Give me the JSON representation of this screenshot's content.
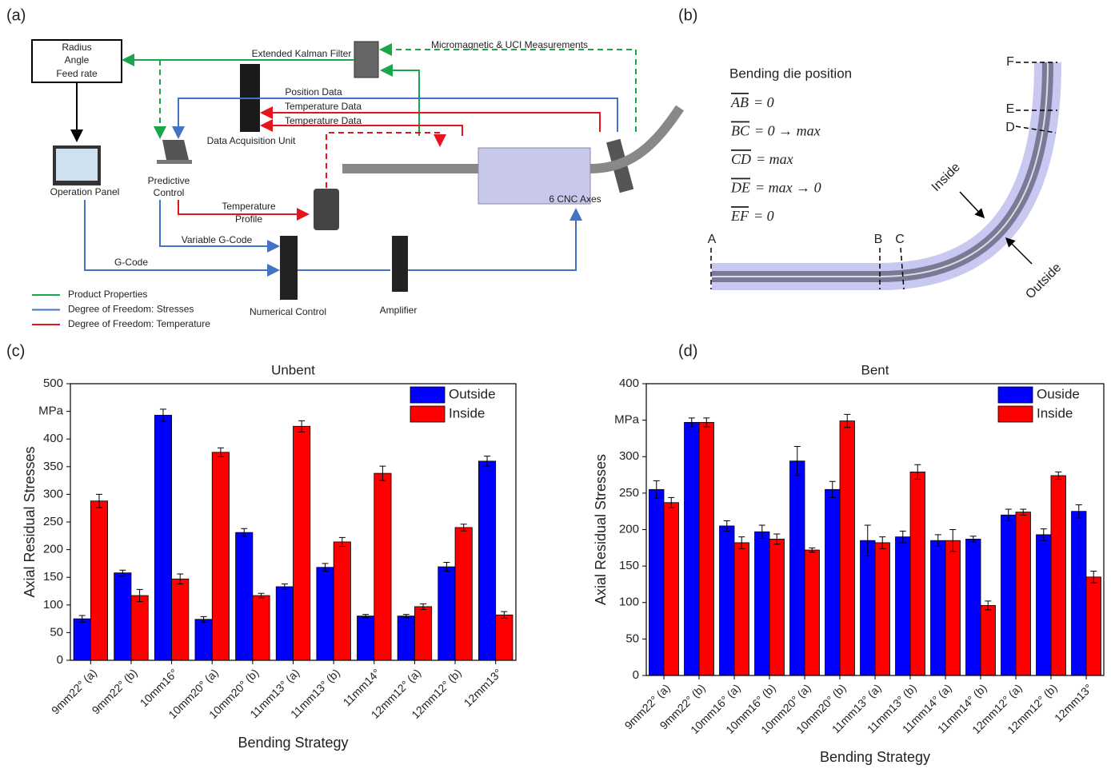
{
  "panel_labels": [
    "(a)",
    "(b)",
    "(c)",
    "(d)"
  ],
  "diagram_a": {
    "target_box": [
      "Radius",
      "Angle",
      "Feed rate"
    ],
    "nodes": {
      "operation_panel": "Operation Panel",
      "predictive_control": [
        "Predictive",
        "Control"
      ],
      "data_acquisition": "Data Acquisition Unit",
      "kalman_filter": "Extended Kalman Filter",
      "cnc_axes": "6 CNC Axes",
      "numerical_control": "Numerical Control",
      "amplifier": "Amplifier"
    },
    "edges": {
      "measurements": "Micromagnetic & UCI Measurements",
      "position": "Position Data",
      "temperature_1": "Temperature Data",
      "temperature_2": "Temperature Data",
      "temperature_profile": [
        "Temperature",
        "Profile"
      ],
      "variable_gcode": "Variable G-Code",
      "gcode": "G-Code"
    },
    "legend": [
      {
        "name": "Product Properties",
        "color": "#1aa64a"
      },
      {
        "name": "Degree of Freedom: Stresses",
        "color": "#4472c4"
      },
      {
        "name": "Degree of Freedom: Temperature",
        "color": "#e8141b"
      }
    ]
  },
  "diagram_b": {
    "heading": "Bending die position",
    "formulas": [
      {
        "segment": "AB",
        "expression": "= 0"
      },
      {
        "segment": "BC",
        "expression": "= 0 → max"
      },
      {
        "segment": "CD",
        "expression": "= max"
      },
      {
        "segment": "DE",
        "expression": "= max → 0"
      },
      {
        "segment": "EF",
        "expression": "= 0"
      }
    ],
    "points": [
      "A",
      "B",
      "C",
      "D",
      "E",
      "F"
    ],
    "sides": [
      "Inside",
      "Outside"
    ]
  },
  "chart_data": [
    {
      "type": "bar",
      "title": "Unbent",
      "xlabel": "Bending Strategy",
      "ylabel": "Axial Residual Stresses",
      "categories": [
        "9mm22° (a)",
        "9mm22° (b)",
        "10mm16°",
        "10mm20° (a)",
        "10mm20° (b)",
        "11mm13° (a)",
        "11mm13° (b)",
        "11mm14°",
        "12mm12° (a)",
        "12mm12° (b)",
        "12mm13°"
      ],
      "series": [
        {
          "name": "Outside",
          "color": "#0000ff",
          "values": [
            75,
            158,
            443,
            74,
            231,
            133,
            168,
            80,
            80,
            169,
            360
          ],
          "errors": [
            6,
            5,
            11,
            5,
            7,
            5,
            7,
            3,
            3,
            8,
            9
          ]
        },
        {
          "name": "Inside",
          "color": "#ff0000",
          "values": [
            288,
            117,
            147,
            376,
            117,
            423,
            214,
            338,
            97,
            240,
            82
          ],
          "errors": [
            12,
            11,
            9,
            8,
            4,
            10,
            8,
            13,
            5,
            6,
            6
          ]
        }
      ],
      "ylim": [
        0,
        500
      ],
      "yticks": [
        0,
        50,
        100,
        150,
        200,
        250,
        300,
        350,
        400,
        {
          "value": 450,
          "label": "MPa"
        },
        500
      ],
      "legend": "upper right"
    },
    {
      "type": "bar",
      "title": "Bent",
      "xlabel": "Bending Strategy",
      "ylabel": "Axial Residual Stresses",
      "categories": [
        "9mm22° (a)",
        "9mm22° (b)",
        "10mm16° (a)",
        "10mm16° (b)",
        "10mm20° (a)",
        "10mm20° (b)",
        "11mm13° (a)",
        "11mm13° (b)",
        "11mm14° (a)",
        "11mm14° (b)",
        "12mm12° (a)",
        "12mm12° (b)",
        "12mm13°"
      ],
      "series": [
        {
          "name": "Ouside",
          "color": "#0000ff",
          "values": [
            255,
            347,
            205,
            197,
            294,
            255,
            185,
            190,
            185,
            187,
            220,
            193,
            225
          ],
          "errors": [
            12,
            6,
            7,
            9,
            20,
            11,
            21,
            8,
            8,
            4,
            8,
            8,
            9
          ]
        },
        {
          "name": "Inside",
          "color": "#ff0000",
          "values": [
            237,
            347,
            182,
            187,
            172,
            349,
            182,
            279,
            185,
            96,
            224,
            274,
            135
          ],
          "errors": [
            7,
            6,
            8,
            7,
            3,
            9,
            8,
            10,
            15,
            6,
            4,
            5,
            8
          ]
        }
      ],
      "ylim": [
        0,
        400
      ],
      "yticks": [
        0,
        50,
        100,
        150,
        200,
        250,
        300,
        {
          "value": 350,
          "label": "MPa"
        },
        400
      ],
      "legend": "upper right"
    }
  ]
}
